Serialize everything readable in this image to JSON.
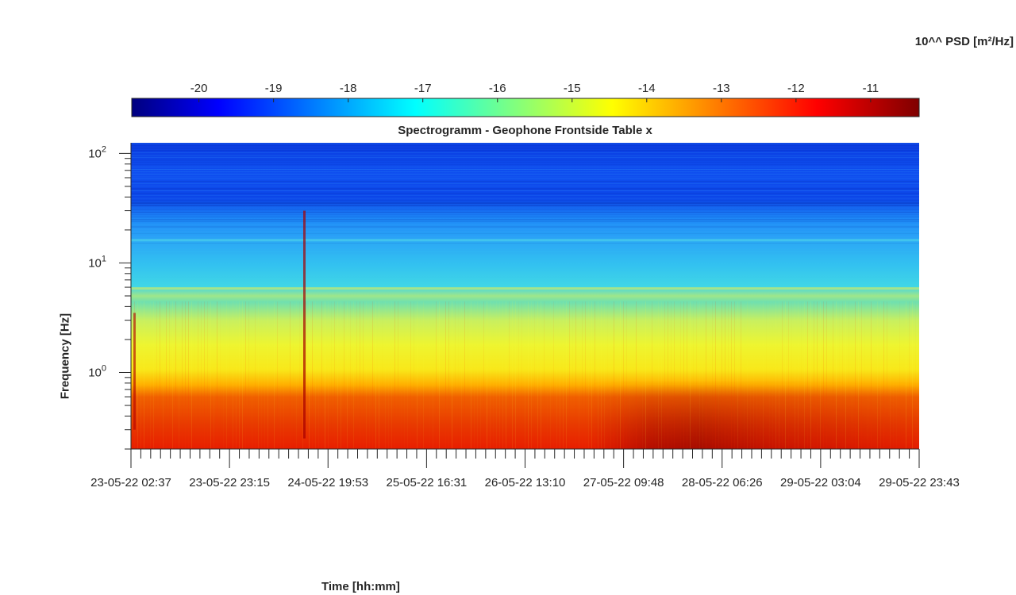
{
  "chart_data": {
    "type": "heatmap",
    "title": "Spectrogramm - Geophone Frontside Table x",
    "xlabel": "Time [hh:mm]",
    "ylabel": "Frequency [Hz]",
    "y_scale": "log",
    "ylim": [
      0.2,
      125
    ],
    "y_ticks": [
      {
        "value": 1,
        "base": "10",
        "exp": "0"
      },
      {
        "value": 10,
        "base": "10",
        "exp": "1"
      },
      {
        "value": 100,
        "base": "10",
        "exp": "2"
      }
    ],
    "x_ticks": [
      "23-05-22 02:37",
      "23-05-22 23:15",
      "24-05-22 19:53",
      "25-05-22 16:31",
      "26-05-22 13:10",
      "27-05-22 09:48",
      "28-05-22 06:26",
      "29-05-22 03:04",
      "29-05-22 23:43"
    ],
    "colorbar": {
      "label": "10^^ PSD [m²/Hz]",
      "colormap": "jet",
      "range": [
        -20.9,
        -10.35
      ],
      "ticks": [
        -20,
        -19,
        -18,
        -17,
        -16,
        -15,
        -14,
        -13,
        -12,
        -11
      ]
    },
    "approx_psd_profile_log10": [
      {
        "freq_hz": 0.25,
        "psd": -11.8
      },
      {
        "freq_hz": 0.5,
        "psd": -12.3
      },
      {
        "freq_hz": 0.8,
        "psd": -13.5
      },
      {
        "freq_hz": 1.5,
        "psd": -14.7
      },
      {
        "freq_hz": 3,
        "psd": -15.3
      },
      {
        "freq_hz": 6,
        "psd": -16.3
      },
      {
        "freq_hz": 10,
        "psd": -16.8
      },
      {
        "freq_hz": 20,
        "psd": -17.6
      },
      {
        "freq_hz": 50,
        "psd": -19.3
      },
      {
        "freq_hz": 100,
        "psd": -19.6
      }
    ]
  }
}
